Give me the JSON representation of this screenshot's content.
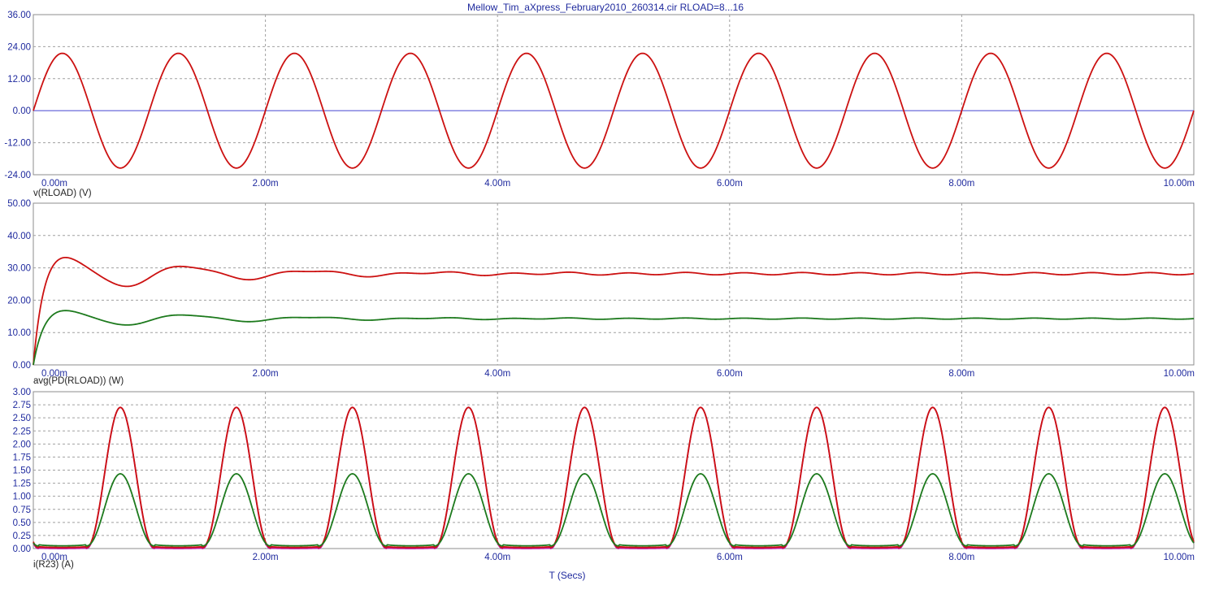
{
  "title": "Mellow_Tim_aXpress_February2010_260314.cir RLOAD=8...16",
  "x_axis_label": "T (Secs)",
  "colors": {
    "text": "#1f2a9e",
    "frame": "#8c8c8c",
    "grid": "#a0a0a0",
    "zero_line": "#5a5ad6",
    "series_red": "#cc1111",
    "series_green": "#1d7a1d",
    "series_magenta": "#c0159a"
  },
  "chart_data": [
    {
      "type": "line",
      "ylabel": "v(RLOAD) (V)",
      "xlim": [
        0,
        10
      ],
      "x_unit": "ms",
      "x_ticks": [
        "0.00m",
        "2.00m",
        "4.00m",
        "6.00m",
        "8.00m",
        "10.00m"
      ],
      "ylim": [
        -24,
        36
      ],
      "y_ticks": [
        "-24.00",
        "-12.00",
        "0.00",
        "12.00",
        "24.00",
        "36.00"
      ],
      "grid": true,
      "series": [
        {
          "color": "series_red",
          "kind": "sine",
          "amplitude": 21.5,
          "period_ms": 1.0
        }
      ]
    },
    {
      "type": "line",
      "ylabel": "avg(PD(RLOAD)) (W)",
      "xlim": [
        0,
        10
      ],
      "x_unit": "ms",
      "x_ticks": [
        "0.00m",
        "2.00m",
        "4.00m",
        "6.00m",
        "8.00m",
        "10.00m"
      ],
      "ylim": [
        0,
        50
      ],
      "y_ticks": [
        "0.00",
        "10.00",
        "20.00",
        "30.00",
        "40.00",
        "50.00"
      ],
      "grid": true,
      "series": [
        {
          "color": "series_red",
          "kind": "average",
          "final_value": 28.2,
          "peak": 34.0,
          "peak_time_ms": 0.26
        },
        {
          "color": "series_green",
          "kind": "average",
          "final_value": 14.3,
          "peak": 17.2,
          "peak_time_ms": 0.26
        }
      ]
    },
    {
      "type": "line",
      "ylabel": "i(R23) (A)",
      "xlim": [
        0,
        10
      ],
      "x_unit": "ms",
      "x_ticks": [
        "0.00m",
        "2.00m",
        "4.00m",
        "6.00m",
        "8.00m",
        "10.00m"
      ],
      "ylim": [
        0,
        3
      ],
      "y_ticks": [
        "0.00",
        "0.25",
        "0.50",
        "0.75",
        "1.00",
        "1.25",
        "1.50",
        "1.75",
        "2.00",
        "2.25",
        "2.50",
        "2.75",
        "3.00"
      ],
      "grid": true,
      "series": [
        {
          "color": "series_magenta",
          "kind": "pulse",
          "peak": 2.7,
          "baseline": 0.0,
          "period_ms": 1.0,
          "peak_time_ms": 0.75
        },
        {
          "color": "series_red",
          "kind": "pulse",
          "peak": 2.7,
          "baseline": 0.02,
          "period_ms": 1.0,
          "peak_time_ms": 0.75
        },
        {
          "color": "series_green",
          "kind": "pulse",
          "peak": 1.43,
          "baseline": 0.05,
          "period_ms": 1.0,
          "peak_time_ms": 0.75
        }
      ]
    }
  ]
}
